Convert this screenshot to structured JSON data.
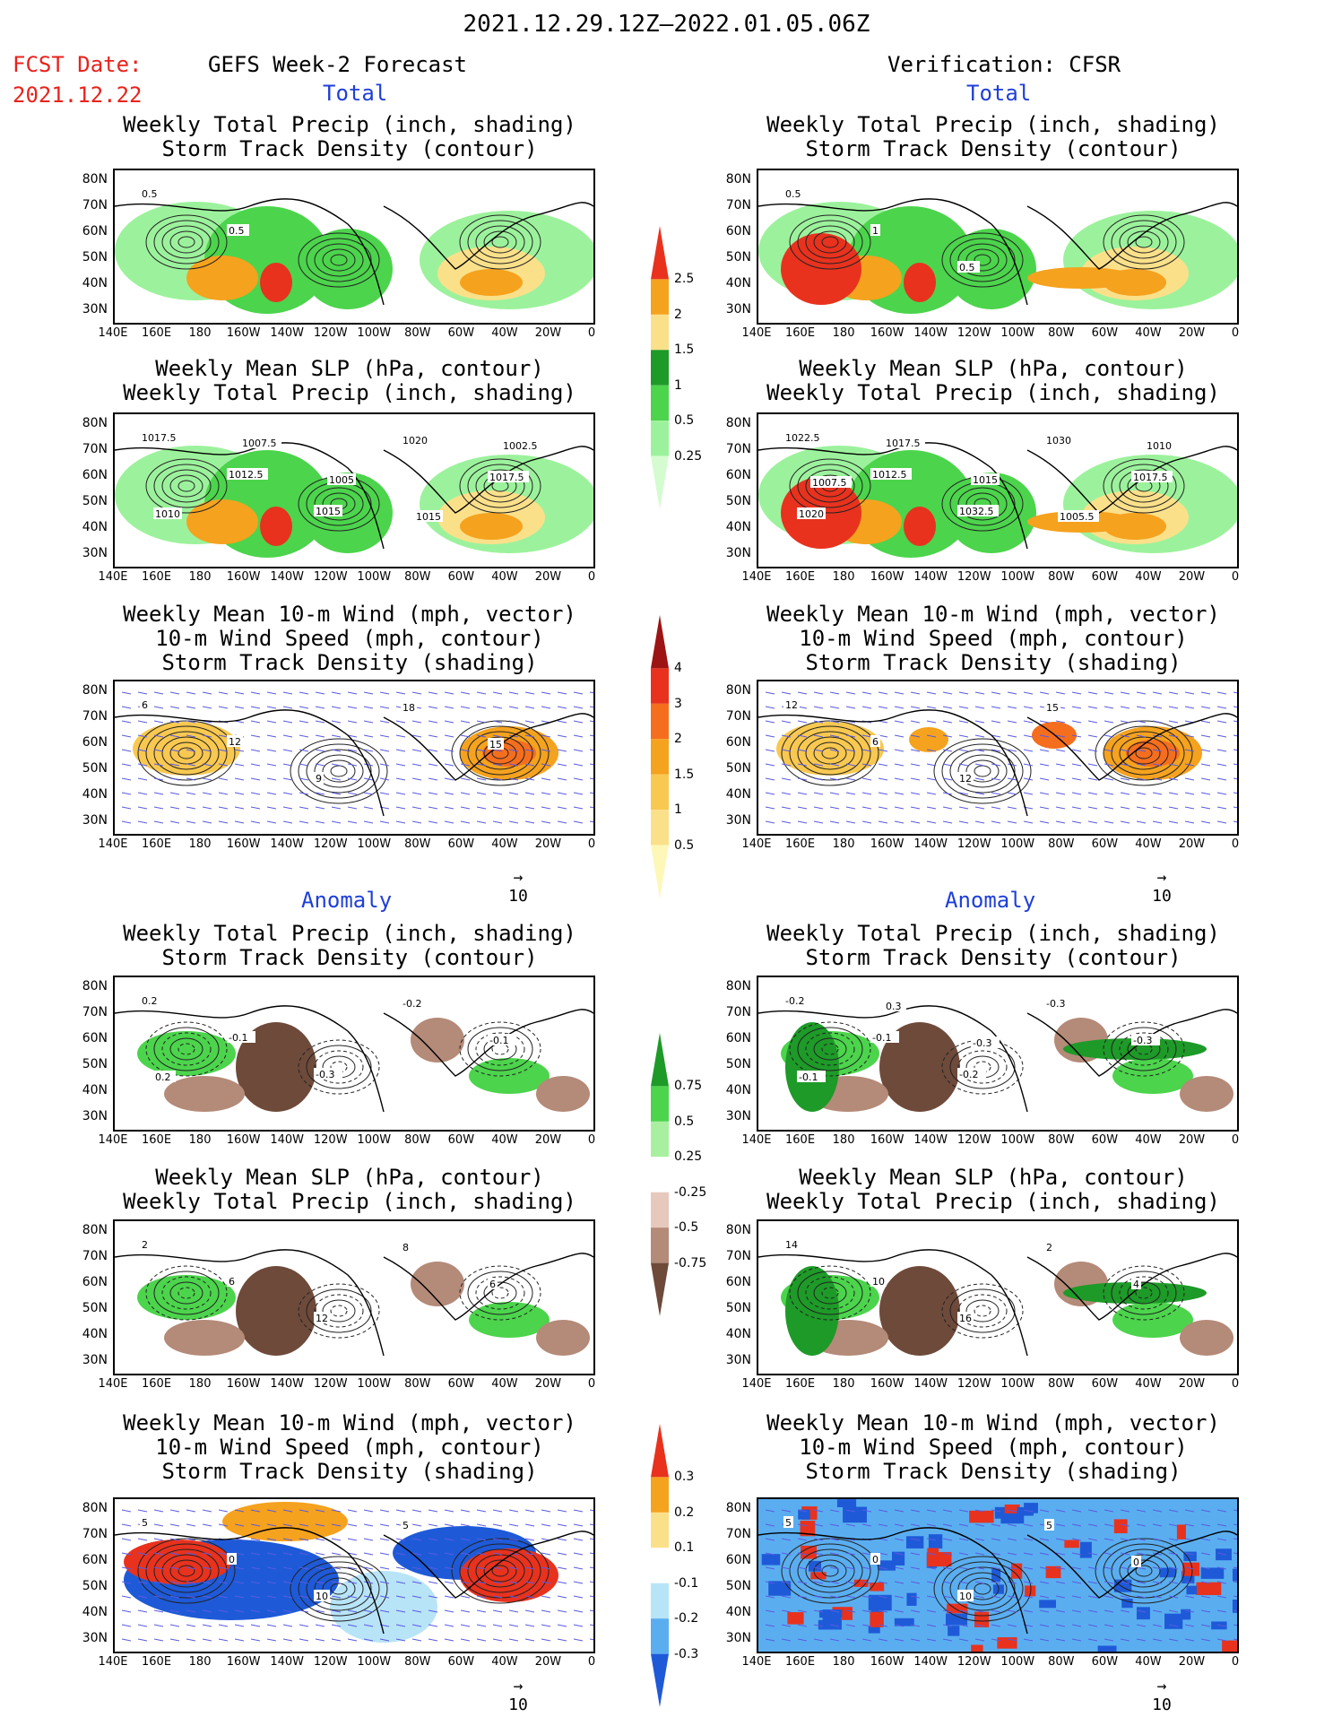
{
  "header": {
    "period": "2021.12.29.12Z–2022.01.05.06Z",
    "fcst_label": "FCST Date:",
    "fcst_date": "2021.12.22",
    "left_title": "GEFS Week-2 Forecast",
    "right_title": "Verification: CFSR",
    "total_label": "Total",
    "anomaly_label": "Anomaly"
  },
  "panel_titles": {
    "precip_storm": [
      "Weekly Total Precip (inch, shading)",
      "Storm Track Density (contour)"
    ],
    "slp_precip": [
      "Weekly Mean SLP (hPa, contour)",
      "Weekly Total Precip (inch, shading)"
    ],
    "wind_storm": [
      "Weekly Mean 10-m Wind (mph, vector)",
      "10-m Wind Speed (mph, contour)",
      "Storm Track Density (shading)"
    ]
  },
  "axes": {
    "lat_labels": [
      "80N",
      "70N",
      "60N",
      "50N",
      "40N",
      "30N"
    ],
    "lon_labels": [
      "140E",
      "160E",
      "180",
      "160W",
      "140W",
      "120W",
      "100W",
      "80W",
      "60W",
      "40W",
      "20W",
      "0"
    ]
  },
  "vector_ref": "10",
  "colorbars": {
    "precip_total": {
      "labels": [
        "2.5",
        "2",
        "1.5",
        "1",
        "0.5",
        "0.25"
      ],
      "colors": [
        "#e8321e",
        "#f5a21e",
        "#fbe08a",
        "#1e9a28",
        "#4cd44c",
        "#9cf29c",
        "#d4fcd0"
      ]
    },
    "storm_total": {
      "labels": [
        "4",
        "3",
        "2",
        "1.5",
        "1",
        "0.5"
      ],
      "colors": [
        "#9c1414",
        "#e8321e",
        "#f56e1e",
        "#f5a21e",
        "#f8c850",
        "#fbe08a",
        "#fdf8b8"
      ]
    },
    "precip_anom": {
      "labels": [
        "0.75",
        "0.5",
        "0.25",
        "-0.25",
        "-0.5",
        "-0.75"
      ],
      "colors": [
        "#1e9a28",
        "#4cd44c",
        "#a8f0a0",
        "#ffffff",
        "#e6c8bc",
        "#b48a78",
        "#6e4a3a"
      ]
    },
    "storm_anom": {
      "labels": [
        "0.3",
        "0.2",
        "0.1",
        "-0.1",
        "-0.2",
        "-0.3"
      ],
      "colors": [
        "#e8321e",
        "#f5a21e",
        "#fbe08a",
        "#ffffff",
        "#b8e4f8",
        "#5aaef0",
        "#1e5ad8"
      ]
    }
  },
  "map_contour_labels": {
    "r1_left": [
      "0.5",
      "0.5"
    ],
    "r1_right": [
      "0.5",
      "1",
      "0.5"
    ],
    "r2_left": [
      "1017.5",
      "1012.5",
      "1015",
      "1020",
      "1017.5",
      "1010",
      "1007.5",
      "1005",
      "1015",
      "1002.5"
    ],
    "r2_right": [
      "1022.5",
      "1012.5",
      "1032.5",
      "1030",
      "1017.5",
      "1020",
      "1017.5",
      "1015",
      "1005.5",
      "1010",
      "1007.5"
    ],
    "r3_left": [
      "6",
      "12",
      "9",
      "18",
      "15"
    ],
    "r3_right": [
      "12",
      "6",
      "12",
      "15"
    ],
    "r4_left": [
      "0.2",
      "-0.1",
      "-0.3",
      "-0.2",
      "-0.1",
      "0.2"
    ],
    "r4_right": [
      "-0.2",
      "-0.1",
      "-0.2",
      "-0.3",
      "-0.3",
      "-0.1",
      "0.3",
      "-0.3"
    ],
    "r5_left": [
      "2",
      "6",
      "12",
      "8",
      "6"
    ],
    "r5_right": [
      "14",
      "10",
      "16",
      "2",
      "4"
    ],
    "r6_left": [
      "5",
      "0",
      "10",
      "5"
    ],
    "r6_right": [
      "5",
      "0",
      "10",
      "5",
      "0"
    ]
  }
}
